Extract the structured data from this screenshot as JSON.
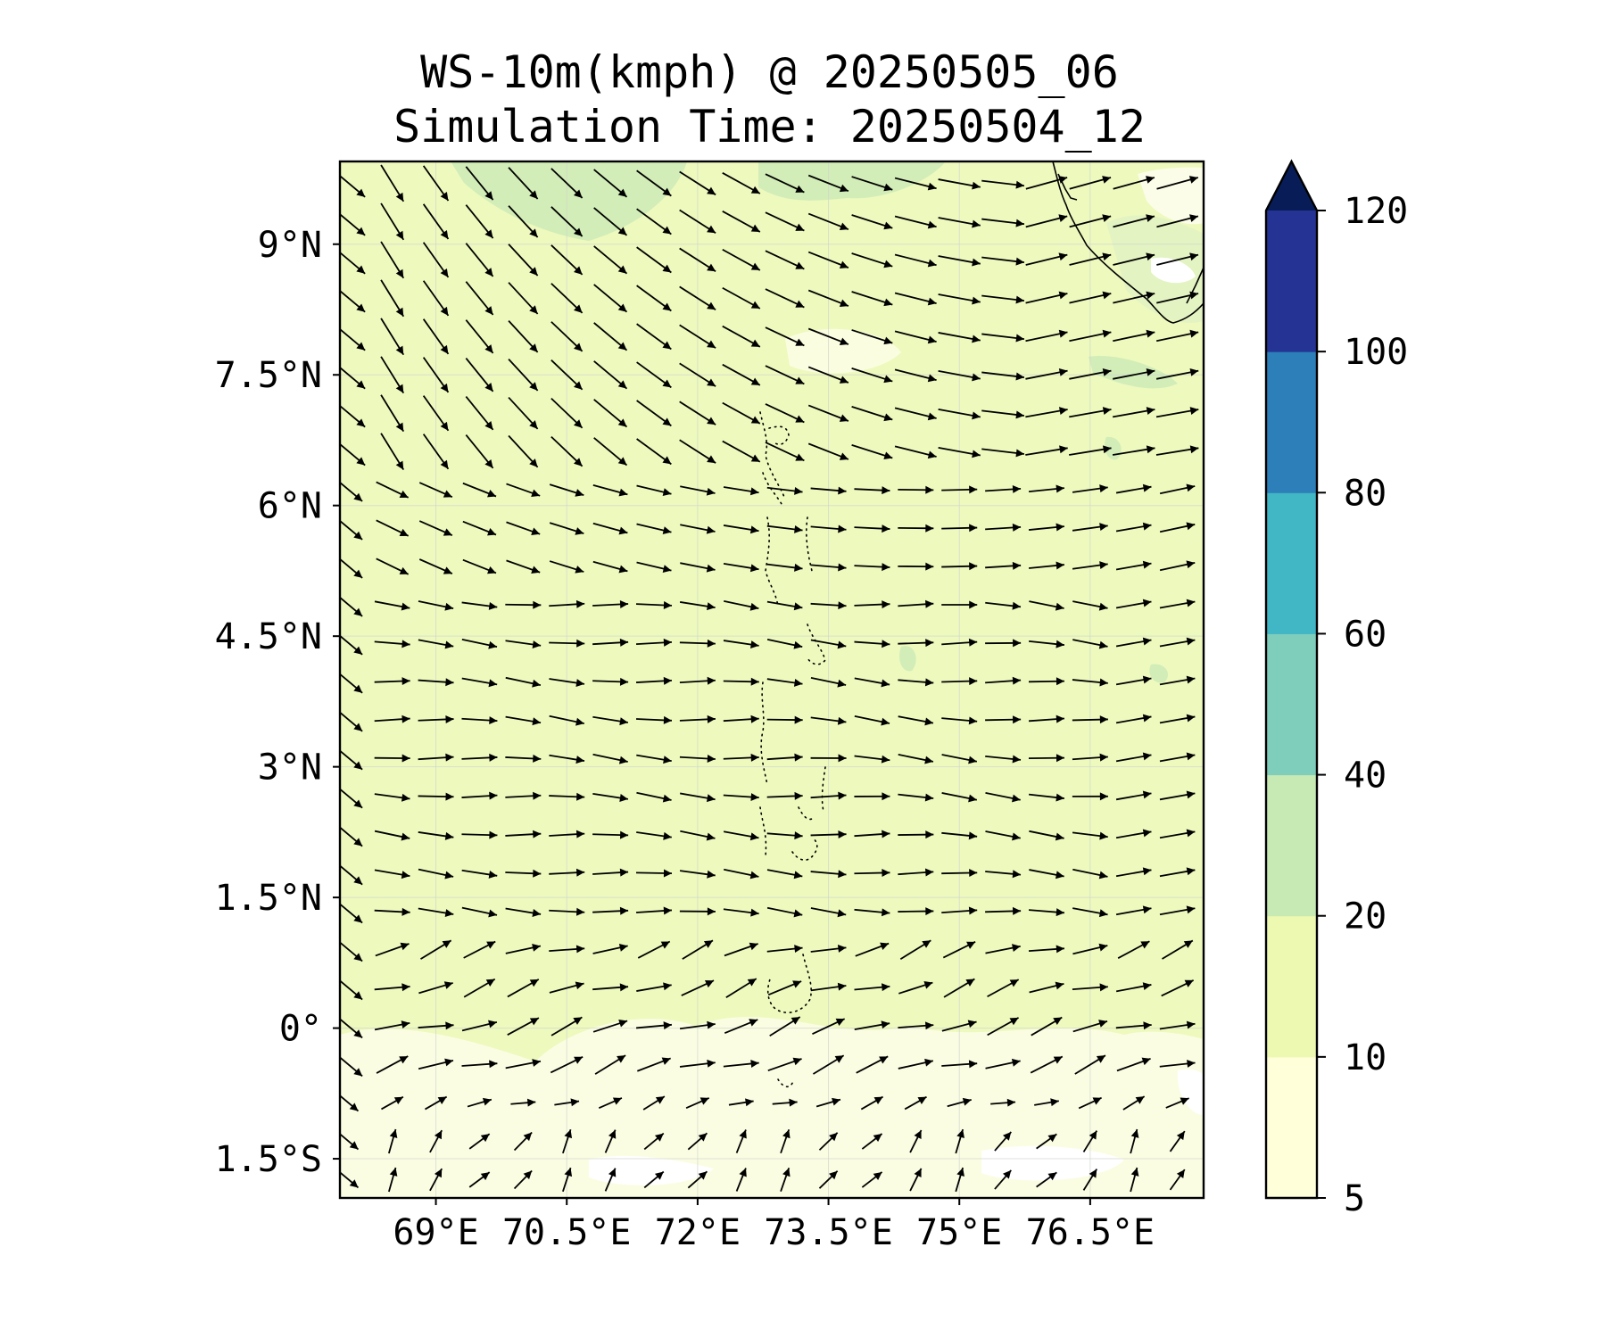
{
  "title": {
    "line1": "WS-10m(kmph) @ 20250505_06",
    "line2": "Simulation Time: 20250504_12"
  },
  "map": {
    "type": "filled-contour-wind-vector-map",
    "lon_range": [
      67.9,
      77.8
    ],
    "lat_range": [
      -1.95,
      9.95
    ],
    "lon_ticks": [
      {
        "value": 69,
        "label": "69°E"
      },
      {
        "value": 70.5,
        "label": "70.5°E"
      },
      {
        "value": 72,
        "label": "72°E"
      },
      {
        "value": 73.5,
        "label": "73.5°E"
      },
      {
        "value": 75,
        "label": "75°E"
      },
      {
        "value": 76.5,
        "label": "76.5°E"
      }
    ],
    "lat_ticks": [
      {
        "value": 9,
        "label": "9°N"
      },
      {
        "value": 7.5,
        "label": "7.5°N"
      },
      {
        "value": 6,
        "label": "6°N"
      },
      {
        "value": 4.5,
        "label": "4.5°N"
      },
      {
        "value": 3,
        "label": "3°N"
      },
      {
        "value": 1.5,
        "label": "1.5°N"
      },
      {
        "value": 0,
        "label": "0°"
      },
      {
        "value": -1.5,
        "label": "1.5°S"
      }
    ],
    "grid": true,
    "background_class": "10-20",
    "wind_vectors": "grid of arrows; north of ~6°N winds blow toward SE in the west and E in the east; south of ~6°N winds blow eastward",
    "coastline": "southern tip of India and Sri Lanka west coast in top-right corner; Maldives atolls as dotted outlines along ~73.3°E"
  },
  "colorbar": {
    "ticks": [
      "5",
      "10",
      "20",
      "40",
      "60",
      "80",
      "100",
      "120"
    ],
    "levels": [
      5,
      10,
      20,
      40,
      60,
      80,
      100,
      120
    ],
    "colors": [
      "#ffffd9",
      "#edf8b1",
      "#c7e9b4",
      "#7fcdbb",
      "#41b6c4",
      "#2c7fb8",
      "#253494",
      "#081d58"
    ],
    "extend": "max"
  }
}
